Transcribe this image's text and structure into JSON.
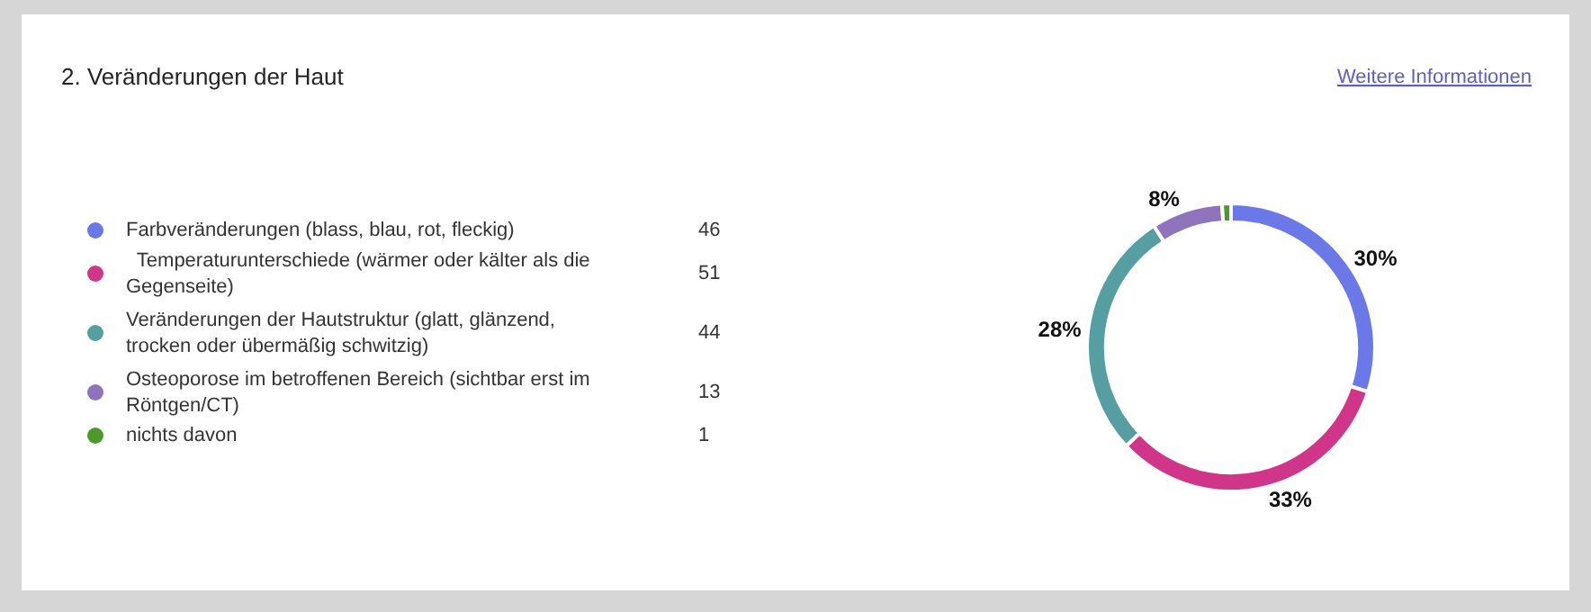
{
  "chart_data": {
    "type": "donut",
    "title": "2. Veränderungen der Haut",
    "categories": [
      "Farbveränderungen (blass, blau, rot, fleckig)",
      " Temperaturunterschiede (wärmer oder kälter als die Gegenseite)",
      "Veränderungen der Hautstruktur (glatt, glänzend, trocken oder übermäßig schwitzig)",
      "Osteoporose im betroffenen Bereich (sichtbar erst im Röntgen/CT)",
      "nichts davon"
    ],
    "values": [
      30,
      33,
      28,
      8,
      1
    ],
    "colors": [
      "#6b79e8",
      "#d1358a",
      "#559ea2",
      "#8f73bd",
      "#4d9a2a"
    ],
    "value_labels": [
      "30%",
      "33%",
      "28%",
      "8%",
      null
    ],
    "data_labels": true,
    "legend": "left",
    "annotations": [
      "Weitere Informationen",
      "46",
      "51",
      "44",
      "13",
      "1"
    ]
  }
}
